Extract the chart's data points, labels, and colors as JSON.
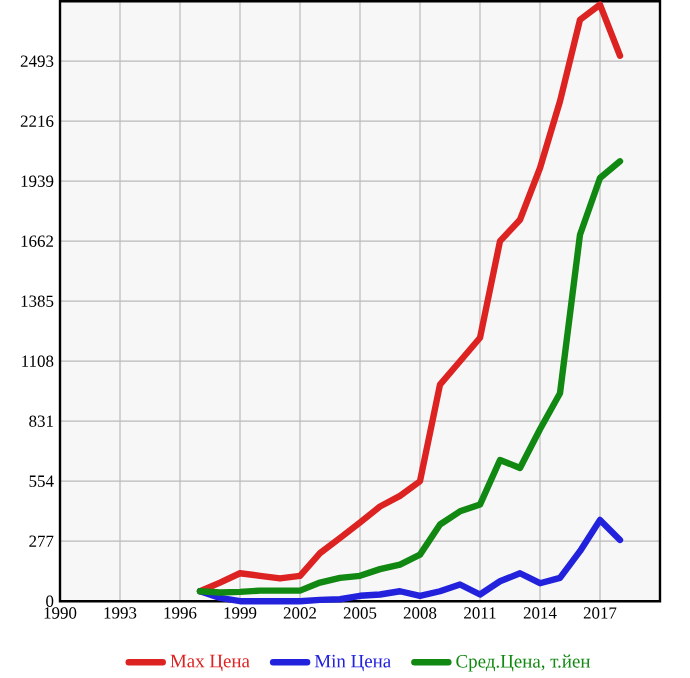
{
  "chart_data": {
    "type": "line",
    "x": [
      1997,
      1998,
      1999,
      2000,
      2001,
      2002,
      2003,
      2004,
      2005,
      2006,
      2007,
      2008,
      2009,
      2010,
      2011,
      2012,
      2013,
      2014,
      2015,
      2016,
      2017,
      2018
    ],
    "series": [
      {
        "name": "Max Цена",
        "color": "#dd2222",
        "values": [
          46,
          86,
          129,
          117,
          105,
          117,
          222,
          292,
          363,
          437,
          486,
          554,
          1000,
          1108,
          1216,
          1662,
          1761,
          2000,
          2308,
          2684,
          2754,
          2518
        ]
      },
      {
        "name": "Min Цена",
        "color": "#2222dd",
        "values": [
          46,
          15,
          0,
          0,
          0,
          0,
          6,
          9,
          25,
          31,
          46,
          25,
          46,
          77,
          31,
          92,
          129,
          83,
          108,
          231,
          375,
          283
        ]
      },
      {
        "name": "Сред.Цена, т.йен",
        "color": "#118811",
        "values": [
          46,
          40,
          43,
          49,
          49,
          49,
          86,
          108,
          117,
          148,
          169,
          215,
          354,
          415,
          446,
          652,
          615,
          794,
          960,
          1692,
          1954,
          2031
        ]
      }
    ],
    "xlim": [
      1990,
      2020
    ],
    "ylim": [
      0,
      2770
    ],
    "xticks": [
      1990,
      1993,
      1996,
      1999,
      2002,
      2005,
      2008,
      2011,
      2014,
      2017
    ],
    "yticks": [
      0,
      277,
      554,
      831,
      1108,
      1385,
      1662,
      1939,
      2216,
      2493
    ],
    "grid": true,
    "legend": "bottom",
    "marker": "none",
    "line_style": "solid"
  }
}
